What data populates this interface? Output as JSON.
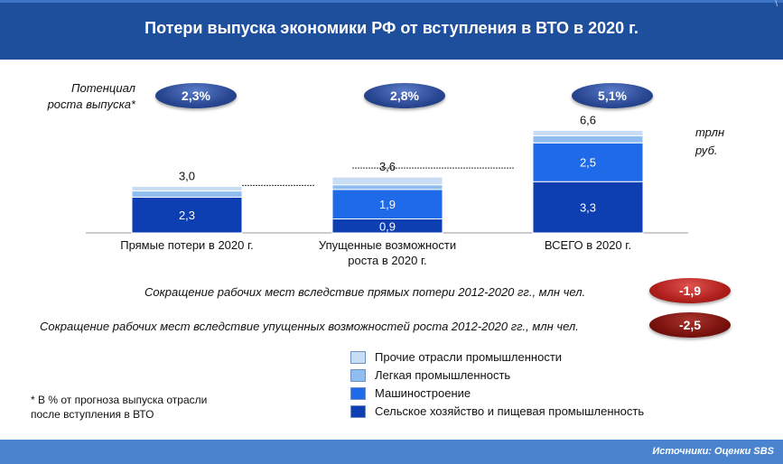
{
  "title": "Потери выпуска экономики РФ от вступления в ВТО в 2020 г.",
  "header_mark": "\\",
  "potential_label_line1": "Потенциал",
  "potential_label_line2": "роста выпуска*",
  "unit_line1": "трлн",
  "unit_line2": "руб.",
  "growth_badges": [
    "2,3%",
    "2,8%",
    "5,1%"
  ],
  "colors": {
    "header": "#1e4f9c",
    "footer": "#4a84cf",
    "other_industry": "#c8dcf4",
    "light_industry": "#8fbdf0",
    "machinery": "#1e6ae8",
    "agri_food": "#0d3fb3"
  },
  "chart_data": {
    "type": "bar",
    "stacked": true,
    "unit": "трлн руб.",
    "categories": [
      "Прямые потери в 2020 г.",
      "Упущенные возможности роста в 2020 г.",
      "ВСЕГО в 2020 г."
    ],
    "category_lines": [
      [
        "Прямые потери в 2020 г."
      ],
      [
        "Упущенные возможности",
        "роста в 2020 г."
      ],
      [
        "ВСЕГО в 2020 г."
      ]
    ],
    "totals": [
      "3,0",
      "3,6",
      "6,6"
    ],
    "series": [
      {
        "name": "Сельское хозяйство и пищевая промышленность",
        "color": "#0d3fb3",
        "values": [
          2.3,
          0.9,
          3.3
        ],
        "labels": [
          "2,3",
          "0,9",
          "3,3"
        ]
      },
      {
        "name": "Машиностроение",
        "color": "#1e6ae8",
        "values": [
          0.0,
          1.9,
          2.5
        ],
        "labels": [
          "",
          "1,9",
          "2,5"
        ]
      },
      {
        "name": "Легкая промышленность",
        "color": "#8fbdf0",
        "values": [
          0.4,
          0.3,
          0.45
        ],
        "labels": [
          "",
          "",
          ""
        ]
      },
      {
        "name": "Прочие отрасли промышленности",
        "color": "#c8dcf4",
        "values": [
          0.3,
          0.5,
          0.35
        ],
        "labels": [
          "",
          "",
          ""
        ]
      }
    ],
    "ylim": [
      0,
      7
    ]
  },
  "job_cuts": [
    {
      "text": "Сокращение рабочих мест вследствие прямых потери  2012-2020 гг., млн чел.",
      "value": "-1,9"
    },
    {
      "text": "Сокращение рабочих мест вследствие упущенных возможностей роста 2012-2020 гг., млн чел.",
      "value": "-2,5"
    }
  ],
  "legend": [
    {
      "label": "Прочие отрасли промышленности",
      "color": "#c8dcf4"
    },
    {
      "label": "Легкая промышленность",
      "color": "#8fbdf0"
    },
    {
      "label": "Машиностроение",
      "color": "#1e6ae8"
    },
    {
      "label": "Сельское хозяйство и пищевая промышленность",
      "color": "#0d3fb3"
    }
  ],
  "footnote_line1": "* В % от прогноза выпуска отрасли",
  "footnote_line2": "после вступления в ВТО",
  "source": "Источники: Оценки SBS"
}
